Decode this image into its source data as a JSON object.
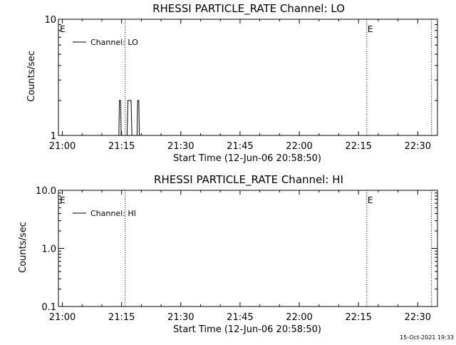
{
  "footer": {
    "timestamp": "15-Oct-2021 19:33"
  },
  "chart_data": [
    {
      "type": "line",
      "title": "RHESSI PARTICLE_RATE Channel: LO",
      "xlabel": "Start Time (12-Jun-06 20:58:50)",
      "ylabel": "Counts/sec",
      "x_tick_labels": [
        "21:00",
        "21:15",
        "21:30",
        "21:45",
        "22:00",
        "22:15",
        "22:30"
      ],
      "x_tick_minutes": [
        60,
        75,
        90,
        105,
        120,
        135,
        150
      ],
      "xlim_minutes": [
        59,
        155
      ],
      "y_scale": "log",
      "ylim": [
        1,
        10
      ],
      "y_tick_labels": [
        "1",
        "10"
      ],
      "y_tick_values": [
        1,
        10
      ],
      "legend": {
        "label": "Channel: LO",
        "placement": "top-left"
      },
      "markers": [
        {
          "minute": 59.2,
          "label": "E",
          "line": false
        },
        {
          "minute": 75.9,
          "label": "",
          "line": true
        },
        {
          "minute": 137.1,
          "label": "E",
          "line": true
        },
        {
          "minute": 153.5,
          "label": "",
          "line": true
        }
      ],
      "series": [
        {
          "x_minutes": [
            74.3,
            74.45,
            74.6,
            74.75,
            74.9,
            76.4,
            76.6,
            76.8,
            77.0,
            77.2,
            77.4,
            77.6,
            78.9,
            79.05,
            79.2,
            79.35,
            79.5
          ],
          "values": [
            1,
            2,
            2,
            2,
            1,
            1,
            2,
            2,
            2,
            2,
            2,
            1,
            1,
            2,
            2,
            2,
            1
          ]
        }
      ]
    },
    {
      "type": "line",
      "title": "RHESSI PARTICLE_RATE Channel: HI",
      "xlabel": "Start Time (12-Jun-06 20:58:50)",
      "ylabel": "Counts/sec",
      "x_tick_labels": [
        "21:00",
        "21:15",
        "21:30",
        "21:45",
        "22:00",
        "22:15",
        "22:30"
      ],
      "x_tick_minutes": [
        60,
        75,
        90,
        105,
        120,
        135,
        150
      ],
      "xlim_minutes": [
        59,
        155
      ],
      "y_scale": "log",
      "ylim": [
        0.1,
        10
      ],
      "y_tick_labels": [
        "0.1",
        "1.0",
        "10.0"
      ],
      "y_tick_values": [
        0.1,
        1,
        10
      ],
      "legend": {
        "label": "Channel: HI",
        "placement": "top-left"
      },
      "markers": [
        {
          "minute": 59.2,
          "label": "E",
          "line": false
        },
        {
          "minute": 75.9,
          "label": "",
          "line": true
        },
        {
          "minute": 137.1,
          "label": "E",
          "line": true
        },
        {
          "minute": 153.5,
          "label": "",
          "line": true
        }
      ],
      "series": [
        {
          "x_minutes": [],
          "values": []
        }
      ]
    }
  ]
}
